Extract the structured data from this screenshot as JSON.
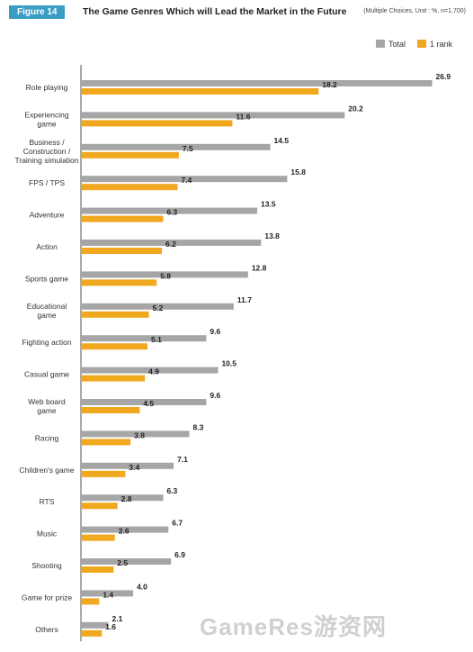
{
  "header": {
    "figure_label": "Figure 14",
    "title": "The Game Genres Which will Lead the Market in the Future",
    "note": "(Multiple Choices, Unit : %, n=1,700)"
  },
  "watermark": "GameRes游资网",
  "colors": {
    "total": "#a6a6a6",
    "rank1": "#f0a81e",
    "badge": "#3a9dc4"
  },
  "chart_data": {
    "type": "bar",
    "orientation": "horizontal",
    "categories": [
      [
        "Role playing"
      ],
      [
        "Experiencing",
        "game"
      ],
      [
        "Business /",
        "Construction /",
        "Training simulation"
      ],
      [
        "FPS / TPS"
      ],
      [
        "Adventure"
      ],
      [
        "Action"
      ],
      [
        "Sports game"
      ],
      [
        "Educational",
        "game"
      ],
      [
        "Fighting action"
      ],
      [
        "Casual game"
      ],
      [
        "Web board",
        "game"
      ],
      [
        "Racing"
      ],
      [
        "Children's game"
      ],
      [
        "RTS"
      ],
      [
        "Music"
      ],
      [
        "Shooting"
      ],
      [
        "Game for prize"
      ],
      [
        "Others"
      ]
    ],
    "series": [
      {
        "name": "Total",
        "color": "#a6a6a6",
        "values": [
          26.9,
          20.2,
          14.5,
          15.8,
          13.5,
          13.8,
          12.8,
          11.7,
          9.6,
          10.5,
          9.6,
          8.3,
          7.1,
          6.3,
          6.7,
          6.9,
          4.0,
          2.1
        ]
      },
      {
        "name": "1 rank",
        "color": "#f0a81e",
        "values": [
          18.2,
          11.6,
          7.5,
          7.4,
          6.3,
          6.2,
          5.8,
          5.2,
          5.1,
          4.9,
          4.5,
          3.8,
          3.4,
          2.8,
          2.6,
          2.5,
          1.4,
          1.6
        ]
      }
    ],
    "xlim": [
      0,
      27
    ],
    "legend_position": "top-right",
    "grid": false
  }
}
